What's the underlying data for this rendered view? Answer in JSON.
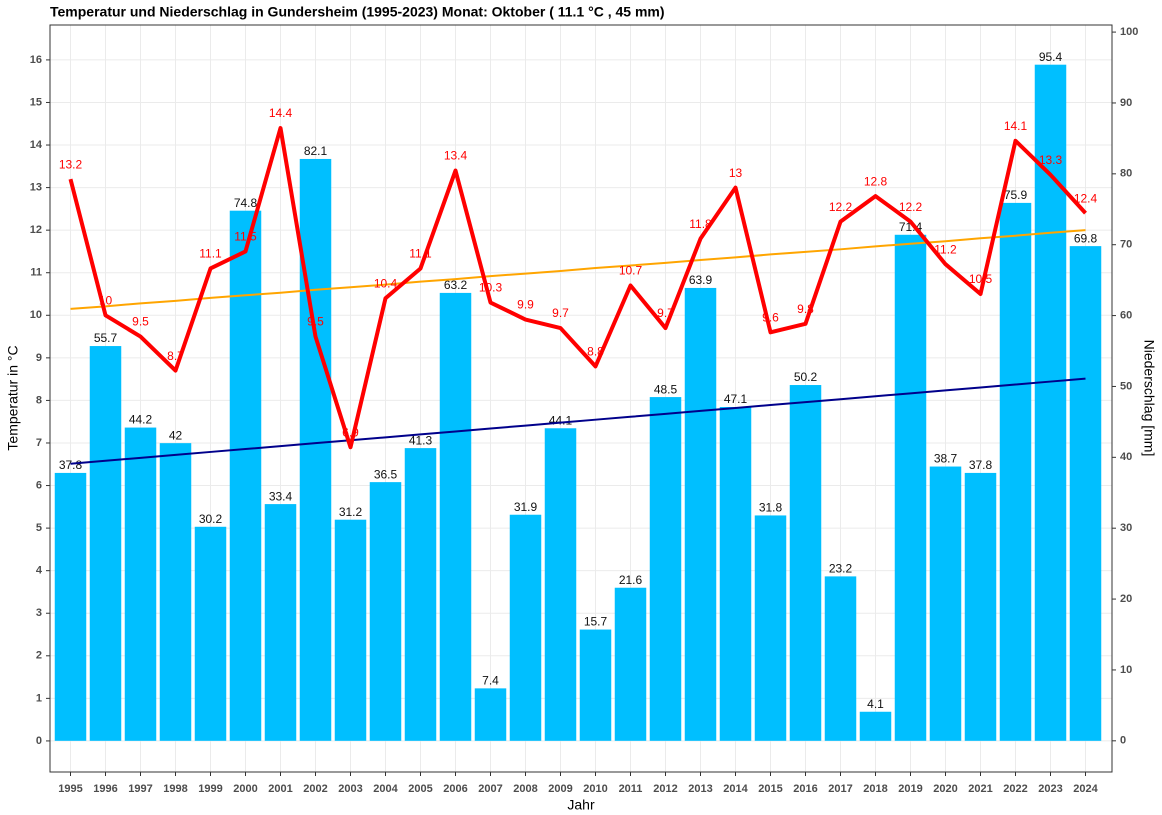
{
  "chart_data": {
    "type": "bar-line",
    "title": "Temperatur und Niederschlag in Gundersheim (1995-2023) Monat: Oktober ( 11.1 °C , 45 mm)",
    "xlabel": "Jahr",
    "ylabel": "Temperatur in °C",
    "y2label": "Niederschlag [mm]",
    "categories": [
      "1995",
      "1996",
      "1997",
      "1998",
      "1999",
      "2000",
      "2001",
      "2002",
      "2003",
      "2004",
      "2005",
      "2006",
      "2007",
      "2008",
      "2009",
      "2010",
      "2011",
      "2012",
      "2013",
      "2014",
      "2015",
      "2016",
      "2017",
      "2018",
      "2019",
      "2020",
      "2021",
      "2022",
      "2023",
      "2024"
    ],
    "series": [
      {
        "type": "bar",
        "axis": "y2",
        "color": "#00bfff",
        "values": [
          37.8,
          55.7,
          44.2,
          42,
          30.2,
          74.8,
          33.4,
          82.1,
          31.2,
          36.5,
          41.3,
          63.2,
          7.4,
          31.9,
          44.1,
          15.7,
          21.6,
          48.5,
          63.9,
          47.1,
          31.8,
          50.2,
          23.2,
          4.1,
          71.4,
          38.7,
          37.8,
          75.9,
          95.4,
          69.8
        ]
      },
      {
        "type": "line",
        "axis": "y",
        "color": "#ff0000",
        "labels": true,
        "values": [
          13.2,
          10,
          9.5,
          8.7,
          11.1,
          11.5,
          14.4,
          9.5,
          6.9,
          10.4,
          11.1,
          13.4,
          10.3,
          9.9,
          9.7,
          8.8,
          10.7,
          9.7,
          11.8,
          13,
          9.6,
          9.8,
          12.2,
          12.8,
          12.2,
          11.2,
          10.5,
          14.1,
          13.3,
          12.4
        ]
      },
      {
        "type": "trend",
        "axis": "y",
        "color": "#ffa500",
        "values": [
          10.15,
          10.21,
          10.28,
          10.34,
          10.41,
          10.47,
          10.53,
          10.6,
          10.66,
          10.72,
          10.79,
          10.85,
          10.92,
          10.98,
          11.04,
          11.11,
          11.17,
          11.23,
          11.3,
          11.36,
          11.43,
          11.49,
          11.55,
          11.62,
          11.68,
          11.74,
          11.81,
          11.87,
          11.94,
          12
        ]
      },
      {
        "type": "trend",
        "axis": "y2",
        "color": "#00008b",
        "values": [
          39.1,
          39.51,
          39.93,
          40.34,
          40.76,
          41.17,
          41.58,
          42,
          42.41,
          42.82,
          43.24,
          43.65,
          44.07,
          44.48,
          44.89,
          45.31,
          45.72,
          46.13,
          46.55,
          46.96,
          47.38,
          47.79,
          48.2,
          48.62,
          49.03,
          49.44,
          49.86,
          50.27,
          50.69,
          51.1
        ]
      }
    ],
    "ylim": [
      -0.73,
      16.82
    ],
    "yticks": [
      0,
      1,
      2,
      3,
      4,
      5,
      6,
      7,
      8,
      9,
      10,
      11,
      12,
      13,
      14,
      15,
      16
    ],
    "y2lim": [
      -4.4,
      101
    ],
    "y2ticks": [
      0,
      10,
      20,
      30,
      40,
      50,
      60,
      70,
      80,
      90,
      100
    ],
    "grid": true
  }
}
